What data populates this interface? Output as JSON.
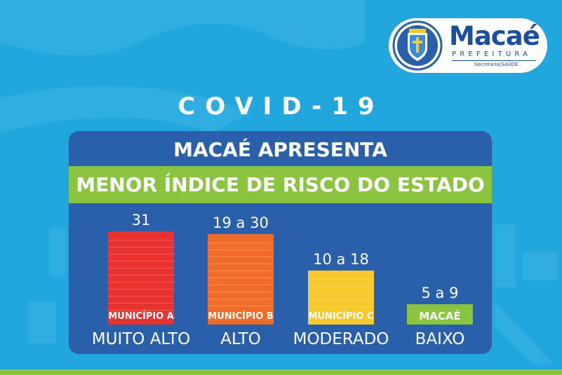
{
  "logo": {
    "name": "Macaé",
    "subtitle": "PREFEITURA",
    "department": "Secretaria|SAÚDE",
    "seal_icon": "coat-of-arms-icon"
  },
  "header": {
    "title": "COVID-19"
  },
  "panel": {
    "title": "MACAÉ APRESENTA",
    "highlight": "MENOR ÍNDICE DE RISCO DO ESTADO"
  },
  "colors": {
    "background": "#22a6de",
    "panel": "#2a5fab",
    "accent_green": "#8bc43f",
    "muito_alto": "#e8322f",
    "alto": "#f06b2a",
    "moderado": "#f8c92b",
    "baixo": "#8bc43f"
  },
  "chart_data": {
    "type": "bar",
    "categories": [
      "MUITO ALTO",
      "ALTO",
      "MODERADO",
      "BAIXO"
    ],
    "ranges": [
      "31",
      "19 a 30",
      "10 a 18",
      "5 a 9"
    ],
    "bar_labels": [
      "MUNICÍPIO A",
      "MUNICÍPIO B",
      "MUNICÍPIO C",
      "MACAÉ"
    ],
    "values": [
      31,
      30,
      18,
      9
    ],
    "colors": [
      "#e8322f",
      "#f06b2a",
      "#f8c92b",
      "#8bc43f"
    ]
  }
}
